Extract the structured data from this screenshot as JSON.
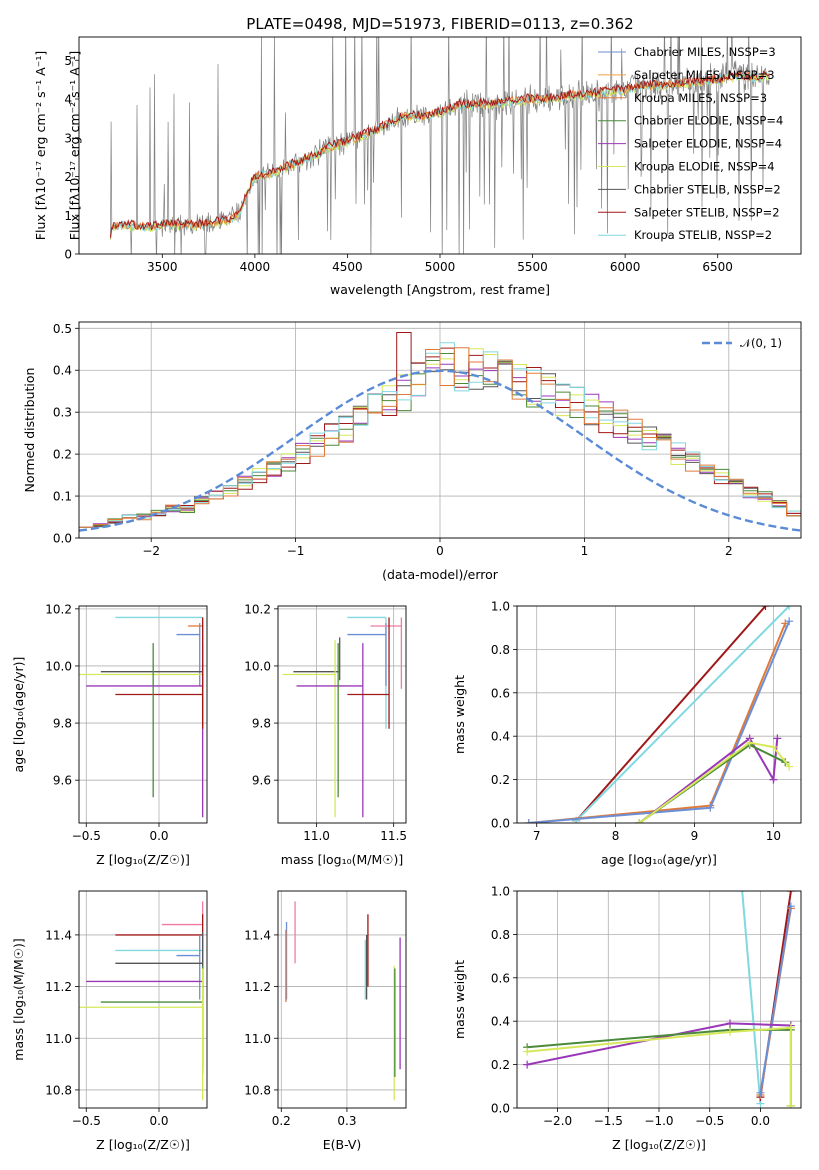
{
  "figure": {
    "title": "PLATE=0498, MJD=51973, FIBERID=0113, z=0.362"
  },
  "colors": {
    "chabrier_miles": "#6a8fd6",
    "salpeter_miles": "#f0a23c",
    "kroupa_miles": "#e07a3a",
    "chabrier_elodie": "#4a8a3a",
    "salpeter_elodie": "#9a38b8",
    "kroupa_elodie": "#d6e85a",
    "chabrier_stelib": "#555555",
    "salpeter_stelib": "#a01818",
    "kroupa_stelib": "#80d8e0",
    "data": "#808080",
    "normal": "#5b8bd6",
    "extra_pink": "#f07ca0"
  },
  "chart_data": [
    {
      "id": "spectrum",
      "type": "line",
      "title": "PLATE=0498, MJD=51973, FIBERID=0113, z=0.362",
      "xlabel": "wavelength [Angstrom, rest frame]",
      "ylabel": "Flux [fλ10⁻¹⁷ erg cm⁻² s⁻¹ A⁻¹]",
      "xlim": [
        3050,
        6950
      ],
      "ylim": [
        0,
        5.6
      ],
      "xticks": [
        3500,
        4000,
        4500,
        5000,
        5500,
        6000,
        6500
      ],
      "yticks": [
        0,
        1,
        2,
        3,
        4,
        5
      ],
      "grid": false,
      "legend_position": "top-right",
      "legend": [
        "Chabrier MILES, NSSP=3",
        "Salpeter MILES, NSSP=3",
        "Kroupa MILES, NSSP=3",
        "Chabrier ELODIE, NSSP=4",
        "Salpeter ELODIE, NSSP=4",
        "Kroupa ELODIE, NSSP=4",
        "Chabrier STELIB, NSSP=2",
        "Salpeter STELIB, NSSP=2",
        "Kroupa STELIB, NSSP=2"
      ],
      "model_trend": {
        "x": [
          3220,
          3230,
          3300,
          3400,
          3480,
          3520,
          3600,
          3700,
          3800,
          3870,
          3920,
          3960,
          4000,
          4100,
          4200,
          4300,
          4400,
          4500,
          4600,
          4700,
          4800,
          4900,
          5000,
          5100,
          5200,
          5300,
          5400,
          5500,
          5600,
          5700,
          5800,
          5900,
          6000,
          6100,
          6200,
          6300,
          6400,
          6500,
          6600,
          6700,
          6750
        ],
        "y": [
          0.5,
          0.7,
          0.75,
          0.7,
          0.72,
          0.8,
          0.75,
          0.75,
          0.82,
          0.9,
          1.1,
          1.6,
          2.0,
          2.1,
          2.3,
          2.5,
          2.75,
          2.9,
          3.1,
          3.3,
          3.55,
          3.55,
          3.65,
          3.85,
          3.85,
          3.9,
          3.95,
          4.0,
          4.0,
          4.1,
          4.1,
          4.2,
          4.25,
          4.35,
          4.35,
          4.4,
          4.45,
          4.5,
          4.6,
          4.55,
          4.6
        ]
      }
    },
    {
      "id": "residuals",
      "type": "bar",
      "xlabel": "(data-model)/error",
      "ylabel": "Normed distribution",
      "xlim": [
        -2.5,
        2.5
      ],
      "ylim": [
        0,
        0.515
      ],
      "xticks": [
        -2,
        -1,
        0,
        1,
        2
      ],
      "yticks": [
        0.0,
        0.1,
        0.2,
        0.3,
        0.4,
        0.5
      ],
      "grid": true,
      "legend_position": "top-right",
      "legend": [
        "𝒩(0, 1)"
      ],
      "bin_width": 0.1,
      "bins_start": -2.5,
      "base_hist": [
        0.03,
        0.03,
        0.04,
        0.05,
        0.05,
        0.06,
        0.07,
        0.07,
        0.09,
        0.1,
        0.11,
        0.13,
        0.15,
        0.16,
        0.18,
        0.2,
        0.22,
        0.24,
        0.26,
        0.28,
        0.31,
        0.33,
        0.35,
        0.37,
        0.4,
        0.41,
        0.4,
        0.4,
        0.39,
        0.38,
        0.37,
        0.36,
        0.35,
        0.33,
        0.32,
        0.31,
        0.29,
        0.27,
        0.26,
        0.24,
        0.22,
        0.2,
        0.18,
        0.16,
        0.15,
        0.13,
        0.11,
        0.1,
        0.08,
        0.06
      ]
    },
    {
      "id": "age_vs_Z",
      "type": "scatter",
      "xlabel": "Z [log₁₀(Z/Z☉)]",
      "ylabel": "age  [log₁₀(age/yr)]",
      "xlim": [
        -0.55,
        0.33
      ],
      "ylim": [
        9.45,
        10.21
      ],
      "xticks": [
        -0.5,
        0.0
      ],
      "yticks": [
        9.6,
        9.8,
        10.0,
        10.2
      ],
      "grid": true,
      "errorbars": [
        {
          "series": "kroupa_stelib",
          "x": [
            -0.3,
            0.3
          ],
          "y": 10.17,
          "yerr": [
            9.78,
            10.17
          ]
        },
        {
          "series": "chabrier_miles",
          "x": [
            0.12,
            0.28
          ],
          "y": 10.11,
          "yerr": [
            9.93,
            10.15
          ]
        },
        {
          "series": "kroupa_miles",
          "x": [
            0.2,
            0.3
          ],
          "y": 10.14,
          "yerr": [
            9.92,
            10.15
          ]
        },
        {
          "series": "chabrier_stelib",
          "x": [
            -0.4,
            0.3
          ],
          "y": 9.98,
          "yerr": [
            9.95,
            10.1
          ]
        },
        {
          "series": "kroupa_elodie",
          "x": [
            -0.55,
            0.3
          ],
          "y": 9.97,
          "yerr": [
            9.47,
            10.09
          ]
        },
        {
          "series": "salpeter_elodie",
          "x": [
            -0.5,
            0.3
          ],
          "y": 9.93,
          "yerr": [
            9.47,
            10.08
          ]
        },
        {
          "series": "salpeter_stelib",
          "x": [
            -0.3,
            0.3
          ],
          "y": 9.9,
          "yerr": [
            9.78,
            10.17
          ]
        },
        {
          "series": "chabrier_elodie",
          "x": [
            -0.04,
            -0.04
          ],
          "y": 9.9,
          "yerr": [
            9.54,
            10.08
          ]
        }
      ]
    },
    {
      "id": "age_vs_mass",
      "type": "scatter",
      "xlabel": "mass [log₁₀(M/M☉)]",
      "ylabel": "",
      "xlim": [
        10.75,
        11.58
      ],
      "ylim": [
        9.45,
        10.21
      ],
      "xticks": [
        11.0,
        11.5
      ],
      "yticks": [
        9.6,
        9.8,
        10.0,
        10.2
      ],
      "grid": true,
      "errorbars": [
        {
          "series": "kroupa_stelib",
          "x": [
            11.2,
            11.45
          ],
          "y": 10.17,
          "yerr": [
            9.78,
            10.17
          ]
        },
        {
          "series": "chabrier_miles",
          "x": [
            11.2,
            11.45
          ],
          "y": 10.11,
          "yerr": [
            9.93,
            10.15
          ]
        },
        {
          "series": "extra_pink",
          "x": [
            11.35,
            11.55
          ],
          "y": 10.14,
          "yerr": [
            9.92,
            10.17
          ]
        },
        {
          "series": "chabrier_stelib",
          "x": [
            10.85,
            11.15
          ],
          "y": 9.98,
          "yerr": [
            9.95,
            10.1
          ]
        },
        {
          "series": "kroupa_elodie",
          "x": [
            10.78,
            11.12
          ],
          "y": 9.97,
          "yerr": [
            9.47,
            10.09
          ]
        },
        {
          "series": "salpeter_elodie",
          "x": [
            10.87,
            11.3
          ],
          "y": 9.93,
          "yerr": [
            9.47,
            10.08
          ]
        },
        {
          "series": "salpeter_stelib",
          "x": [
            11.2,
            11.47
          ],
          "y": 9.9,
          "yerr": [
            9.78,
            10.17
          ]
        },
        {
          "series": "chabrier_elodie",
          "x": [
            11.14,
            11.14
          ],
          "y": 9.9,
          "yerr": [
            9.54,
            10.08
          ]
        }
      ]
    },
    {
      "id": "massweight_vs_age",
      "type": "line",
      "xlabel": "age  [log₁₀(age/yr)]",
      "ylabel": "mass weight",
      "xlim": [
        6.75,
        10.35
      ],
      "ylim": [
        0,
        1.0
      ],
      "xticks": [
        7,
        8,
        9,
        10
      ],
      "yticks": [
        0.0,
        0.2,
        0.4,
        0.6,
        0.8,
        1.0
      ],
      "grid": true,
      "series": [
        {
          "name": "Salpeter STELIB",
          "color_key": "salpeter_stelib",
          "x": [
            7.5,
            9.9
          ],
          "y": [
            0.01,
            1.0
          ]
        },
        {
          "name": "Kroupa STELIB",
          "color_key": "kroupa_stelib",
          "x": [
            7.5,
            10.2
          ],
          "y": [
            0.01,
            1.0
          ]
        },
        {
          "name": "Kroupa MILES",
          "color_key": "kroupa_miles",
          "x": [
            6.9,
            9.2,
            10.15
          ],
          "y": [
            0.0,
            0.08,
            0.92
          ]
        },
        {
          "name": "Chabrier MILES",
          "color_key": "chabrier_miles",
          "x": [
            6.9,
            9.2,
            10.2
          ],
          "y": [
            0.0,
            0.07,
            0.93
          ]
        },
        {
          "name": "Salpeter ELODIE",
          "color_key": "salpeter_elodie",
          "x": [
            8.3,
            9.7,
            10.0,
            10.05
          ],
          "y": [
            0.0,
            0.39,
            0.2,
            0.39
          ]
        },
        {
          "name": "Chabrier ELODIE",
          "color_key": "chabrier_elodie",
          "x": [
            8.3,
            9.7,
            10.15
          ],
          "y": [
            0.0,
            0.36,
            0.28
          ]
        },
        {
          "name": "Kroupa ELODIE",
          "color_key": "kroupa_elodie",
          "x": [
            8.3,
            9.7,
            10.0,
            10.2
          ],
          "y": [
            0.0,
            0.37,
            0.35,
            0.26
          ]
        }
      ]
    },
    {
      "id": "mass_vs_Z",
      "type": "scatter",
      "xlabel": "Z [log₁₀(Z/Z☉)]",
      "ylabel": "mass [log₁₀(M/M☉)]",
      "xlim": [
        -0.55,
        0.33
      ],
      "ylim": [
        10.73,
        11.57
      ],
      "xticks": [
        -0.5,
        0.0
      ],
      "yticks": [
        10.8,
        11.0,
        11.2,
        11.4
      ],
      "grid": true,
      "errorbars": [
        {
          "series": "extra_pink",
          "x": [
            0.02,
            0.3
          ],
          "y": 11.44,
          "yerr": [
            11.15,
            11.53
          ]
        },
        {
          "series": "salpeter_stelib",
          "x": [
            -0.3,
            0.3
          ],
          "y": 11.4,
          "yerr": [
            11.2,
            11.48
          ]
        },
        {
          "series": "kroupa_stelib",
          "x": [
            -0.3,
            0.3
          ],
          "y": 11.34,
          "yerr": [
            11.16,
            11.41
          ]
        },
        {
          "series": "chabrier_miles",
          "x": [
            0.12,
            0.28
          ],
          "y": 11.32,
          "yerr": [
            11.15,
            11.4
          ]
        },
        {
          "series": "chabrier_stelib",
          "x": [
            -0.3,
            0.3
          ],
          "y": 11.29,
          "yerr": [
            11.15,
            11.41
          ]
        },
        {
          "series": "salpeter_elodie",
          "x": [
            -0.5,
            0.3
          ],
          "y": 11.22,
          "yerr": [
            10.88,
            11.28
          ]
        },
        {
          "series": "chabrier_elodie",
          "x": [
            -0.4,
            0.3
          ],
          "y": 11.14,
          "yerr": [
            10.86,
            11.28
          ]
        },
        {
          "series": "kroupa_elodie",
          "x": [
            -0.55,
            0.3
          ],
          "y": 11.12,
          "yerr": [
            10.76,
            11.27
          ]
        }
      ]
    },
    {
      "id": "mass_vs_ebv",
      "type": "scatter",
      "xlabel": "E(B-V)",
      "ylabel": "",
      "xlim": [
        0.195,
        0.39
      ],
      "ylim": [
        10.73,
        11.57
      ],
      "xticks": [
        0.2,
        0.3
      ],
      "yticks": [
        10.8,
        11.0,
        11.2,
        11.4
      ],
      "grid": true,
      "errorbars": [
        {
          "series": "chabrier_miles",
          "x": 0.208,
          "yerr": [
            11.15,
            11.45
          ]
        },
        {
          "series": "kroupa_miles",
          "x": 0.207,
          "yerr": [
            11.14,
            11.42
          ]
        },
        {
          "series": "extra_pink",
          "x": 0.221,
          "yerr": [
            11.29,
            11.53
          ]
        },
        {
          "series": "kroupa_stelib",
          "x": 0.328,
          "yerr": [
            11.15,
            11.38
          ]
        },
        {
          "series": "chabrier_stelib",
          "x": 0.33,
          "yerr": [
            11.15,
            11.4
          ]
        },
        {
          "series": "salpeter_stelib",
          "x": 0.332,
          "yerr": [
            11.2,
            11.48
          ]
        },
        {
          "series": "kroupa_elodie",
          "x": 0.372,
          "yerr": [
            10.76,
            11.28
          ]
        },
        {
          "series": "chabrier_elodie",
          "x": 0.373,
          "yerr": [
            10.85,
            11.27
          ]
        },
        {
          "series": "salpeter_elodie",
          "x": 0.381,
          "yerr": [
            10.88,
            11.39
          ]
        }
      ]
    },
    {
      "id": "massweight_vs_Z",
      "type": "line",
      "xlabel": "Z [log₁₀(Z/Z☉)]",
      "ylabel": "mass weight",
      "xlim": [
        -2.4,
        0.4
      ],
      "ylim": [
        0,
        1.0
      ],
      "xticks": [
        -2.0,
        -1.5,
        -1.0,
        -0.5,
        0.0
      ],
      "yticks": [
        0.0,
        0.2,
        0.4,
        0.6,
        0.8,
        1.0
      ],
      "grid": true,
      "series": [
        {
          "name": "Kroupa STELIB",
          "color_key": "kroupa_stelib",
          "x": [
            -0.18,
            0.0
          ],
          "y": [
            1.0,
            0.02
          ]
        },
        {
          "name": "Salpeter STELIB",
          "color_key": "salpeter_stelib",
          "x": [
            0.0,
            0.3
          ],
          "y": [
            0.05,
            1.0
          ]
        },
        {
          "name": "Kroupa MILES",
          "color_key": "kroupa_miles",
          "x": [
            0.0,
            0.3
          ],
          "y": [
            0.06,
            0.92
          ]
        },
        {
          "name": "Chabrier MILES",
          "color_key": "chabrier_miles",
          "x": [
            0.0,
            0.3
          ],
          "y": [
            0.07,
            0.93
          ]
        },
        {
          "name": "Salpeter ELODIE",
          "color_key": "salpeter_elodie",
          "x": [
            -2.3,
            -0.3,
            0.3
          ],
          "y": [
            0.2,
            0.39,
            0.38
          ]
        },
        {
          "name": "Chabrier ELODIE",
          "color_key": "chabrier_elodie",
          "x": [
            -2.3,
            -0.3,
            0.3,
            0.3
          ],
          "y": [
            0.28,
            0.36,
            0.36,
            0.01
          ]
        },
        {
          "name": "Kroupa ELODIE",
          "color_key": "kroupa_elodie",
          "x": [
            -2.3,
            -0.3,
            0.3,
            0.3
          ],
          "y": [
            0.26,
            0.35,
            0.37,
            0.01
          ]
        }
      ]
    }
  ]
}
